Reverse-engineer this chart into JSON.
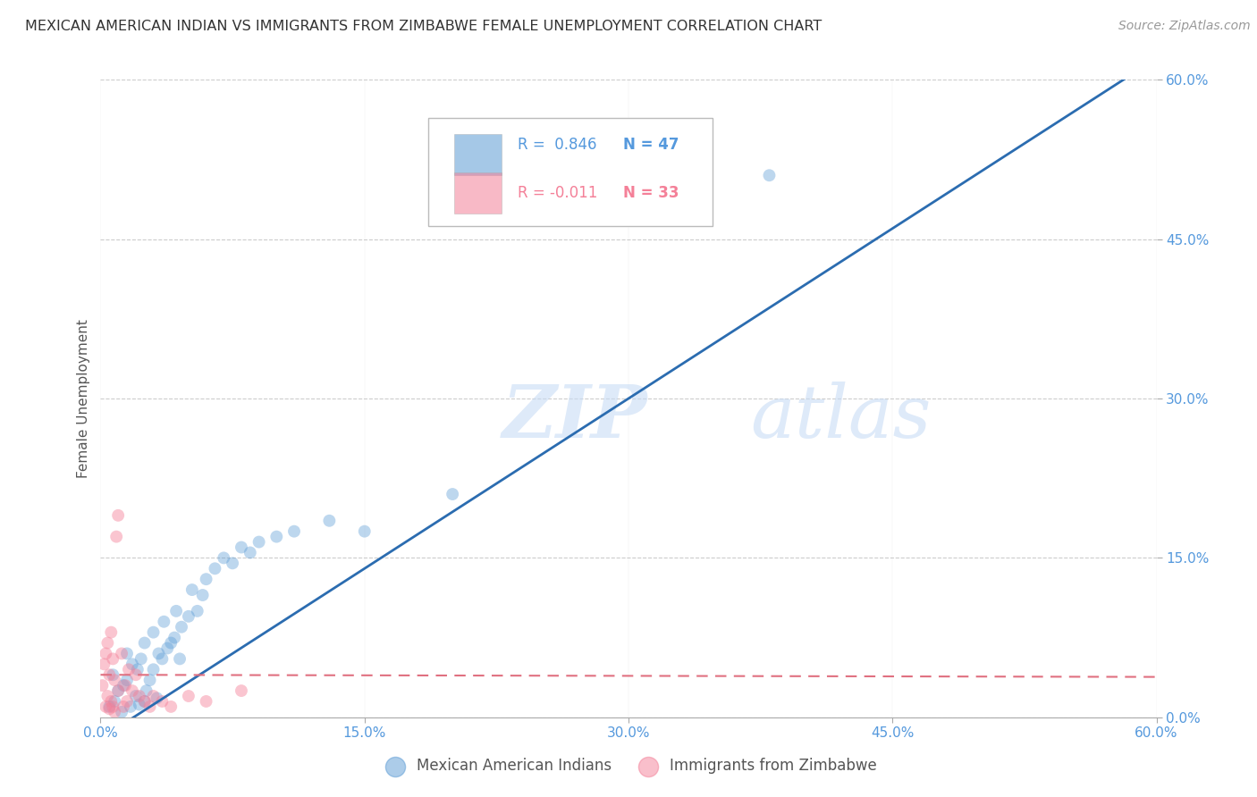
{
  "title": "MEXICAN AMERICAN INDIAN VS IMMIGRANTS FROM ZIMBABWE FEMALE UNEMPLOYMENT CORRELATION CHART",
  "source": "Source: ZipAtlas.com",
  "ylabel": "Female Unemployment",
  "xlim": [
    0.0,
    0.6
  ],
  "ylim": [
    0.0,
    0.6
  ],
  "xtick_positions": [
    0.0,
    0.15,
    0.3,
    0.45,
    0.6
  ],
  "ytick_positions": [
    0.0,
    0.15,
    0.3,
    0.45,
    0.6
  ],
  "blue_scatter_x": [
    0.005,
    0.007,
    0.008,
    0.01,
    0.012,
    0.013,
    0.015,
    0.015,
    0.017,
    0.018,
    0.02,
    0.021,
    0.022,
    0.023,
    0.025,
    0.025,
    0.026,
    0.028,
    0.03,
    0.03,
    0.032,
    0.033,
    0.035,
    0.036,
    0.038,
    0.04,
    0.042,
    0.043,
    0.045,
    0.046,
    0.05,
    0.052,
    0.055,
    0.058,
    0.06,
    0.065,
    0.07,
    0.075,
    0.08,
    0.085,
    0.09,
    0.1,
    0.11,
    0.13,
    0.15,
    0.2,
    0.38
  ],
  "blue_scatter_y": [
    0.01,
    0.04,
    0.015,
    0.025,
    0.005,
    0.03,
    0.035,
    0.06,
    0.01,
    0.05,
    0.02,
    0.045,
    0.012,
    0.055,
    0.015,
    0.07,
    0.025,
    0.035,
    0.045,
    0.08,
    0.018,
    0.06,
    0.055,
    0.09,
    0.065,
    0.07,
    0.075,
    0.1,
    0.055,
    0.085,
    0.095,
    0.12,
    0.1,
    0.115,
    0.13,
    0.14,
    0.15,
    0.145,
    0.16,
    0.155,
    0.165,
    0.17,
    0.175,
    0.185,
    0.175,
    0.21,
    0.51
  ],
  "pink_scatter_x": [
    0.001,
    0.002,
    0.003,
    0.003,
    0.004,
    0.004,
    0.005,
    0.005,
    0.006,
    0.006,
    0.007,
    0.007,
    0.008,
    0.008,
    0.009,
    0.01,
    0.01,
    0.012,
    0.013,
    0.014,
    0.015,
    0.016,
    0.018,
    0.02,
    0.022,
    0.025,
    0.028,
    0.03,
    0.035,
    0.04,
    0.05,
    0.06,
    0.08
  ],
  "pink_scatter_y": [
    0.03,
    0.05,
    0.01,
    0.06,
    0.02,
    0.07,
    0.008,
    0.04,
    0.015,
    0.08,
    0.01,
    0.055,
    0.005,
    0.035,
    0.17,
    0.19,
    0.025,
    0.06,
    0.01,
    0.03,
    0.015,
    0.045,
    0.025,
    0.04,
    0.02,
    0.015,
    0.01,
    0.02,
    0.015,
    0.01,
    0.02,
    0.015,
    0.025
  ],
  "blue_line_x": [
    0.0,
    0.6
  ],
  "blue_line_y": [
    -0.02,
    0.62
  ],
  "pink_line_x": [
    0.0,
    0.6
  ],
  "pink_line_y": [
    0.04,
    0.038
  ],
  "blue_color": "#5b9bd5",
  "pink_color": "#f48098",
  "blue_line_color": "#2b6cb0",
  "pink_line_color": "#e07080",
  "watermark_zip": "ZIP",
  "watermark_atlas": "atlas",
  "legend_r_blue": "R =  0.846",
  "legend_n_blue": "N = 47",
  "legend_r_pink": "R = -0.011",
  "legend_n_pink": "N = 33",
  "legend_label_blue_series": "Mexican American Indians",
  "legend_label_pink_series": "Immigrants from Zimbabwe",
  "background_color": "#ffffff",
  "grid_color": "#cccccc"
}
